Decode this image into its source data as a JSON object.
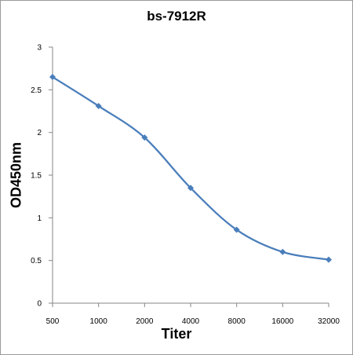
{
  "chart_data": {
    "type": "line",
    "title": "bs-7912R",
    "xlabel": "Titer",
    "ylabel": "OD450nm",
    "categories": [
      "500",
      "1000",
      "2000",
      "4000",
      "8000",
      "16000",
      "32000"
    ],
    "series": [
      {
        "values": [
          2.65,
          2.31,
          1.94,
          1.35,
          0.86,
          0.6,
          0.51
        ]
      }
    ],
    "ylim": [
      0,
      3
    ],
    "yticks": [
      "0",
      "0.5",
      "1",
      "1.5",
      "2",
      "2.5",
      "3"
    ],
    "grid": false,
    "legend": "none",
    "line_color": "#4a7ebb"
  }
}
